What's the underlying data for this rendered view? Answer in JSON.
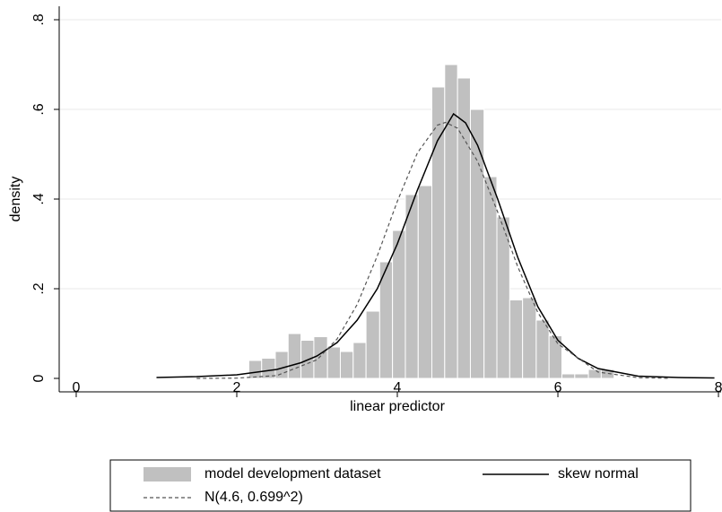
{
  "chart_data": {
    "type": "histogram",
    "xlabel": "linear predictor",
    "ylabel": "density",
    "xlim": [
      -0.212,
      8.033
    ],
    "ylim": [
      -0.03,
      0.83
    ],
    "xticks": [
      0,
      2,
      4,
      6,
      8
    ],
    "yticks": [
      0,
      {
        "value": 0.2,
        "label": ".2"
      },
      {
        "value": 0.4,
        "label": ".4"
      },
      {
        "value": 0.6,
        "label": ".6"
      },
      {
        "value": 0.8,
        "label": ".8"
      }
    ],
    "grid": true,
    "series": [
      {
        "name": "model development dataset",
        "type": "histogram",
        "color": "#c0c0c0",
        "bins": [
          2.15,
          2.31,
          2.48,
          2.64,
          2.8,
          2.96,
          3.13,
          3.29,
          3.45,
          3.61,
          3.78,
          3.94,
          4.1,
          4.26,
          4.43,
          4.59,
          4.75,
          4.91,
          5.08,
          5.24,
          5.4,
          5.56,
          5.73,
          5.89,
          6.05,
          6.21,
          6.38,
          6.54,
          6.7
        ],
        "values": [
          0.04,
          0.045,
          0.06,
          0.1,
          0.085,
          0.093,
          0.07,
          0.06,
          0.08,
          0.15,
          0.26,
          0.33,
          0.41,
          0.43,
          0.65,
          0.7,
          0.67,
          0.6,
          0.45,
          0.36,
          0.175,
          0.18,
          0.13,
          0.095,
          0.01,
          0.01,
          0.02,
          0.02
        ]
      },
      {
        "name": "skew normal",
        "type": "line",
        "color": "#000000",
        "dash": false,
        "x": [
          1.0,
          1.5,
          2.0,
          2.5,
          2.8,
          3.0,
          3.25,
          3.5,
          3.75,
          4.0,
          4.25,
          4.5,
          4.7,
          4.85,
          5.0,
          5.25,
          5.5,
          5.75,
          6.0,
          6.25,
          6.5,
          7.0,
          7.5,
          7.95
        ],
        "values": [
          0.002,
          0.004,
          0.008,
          0.02,
          0.035,
          0.05,
          0.08,
          0.13,
          0.2,
          0.3,
          0.42,
          0.53,
          0.59,
          0.57,
          0.52,
          0.4,
          0.27,
          0.16,
          0.085,
          0.045,
          0.022,
          0.005,
          0.002,
          0.001
        ]
      },
      {
        "name": "N(4.6, 0.699^2)",
        "type": "line",
        "color": "#555555",
        "dash": true,
        "x": [
          1.5,
          2.0,
          2.5,
          3.0,
          3.25,
          3.5,
          3.75,
          4.0,
          4.25,
          4.5,
          4.6,
          4.75,
          5.0,
          5.25,
          5.5,
          5.75,
          6.0,
          6.5,
          7.0,
          7.4
        ],
        "values": [
          0.0,
          0.0006,
          0.0063,
          0.0416,
          0.088,
          0.165,
          0.273,
          0.395,
          0.503,
          0.565,
          0.571,
          0.558,
          0.484,
          0.371,
          0.249,
          0.147,
          0.077,
          0.0142,
          0.0016,
          0.0002
        ]
      }
    ]
  }
}
